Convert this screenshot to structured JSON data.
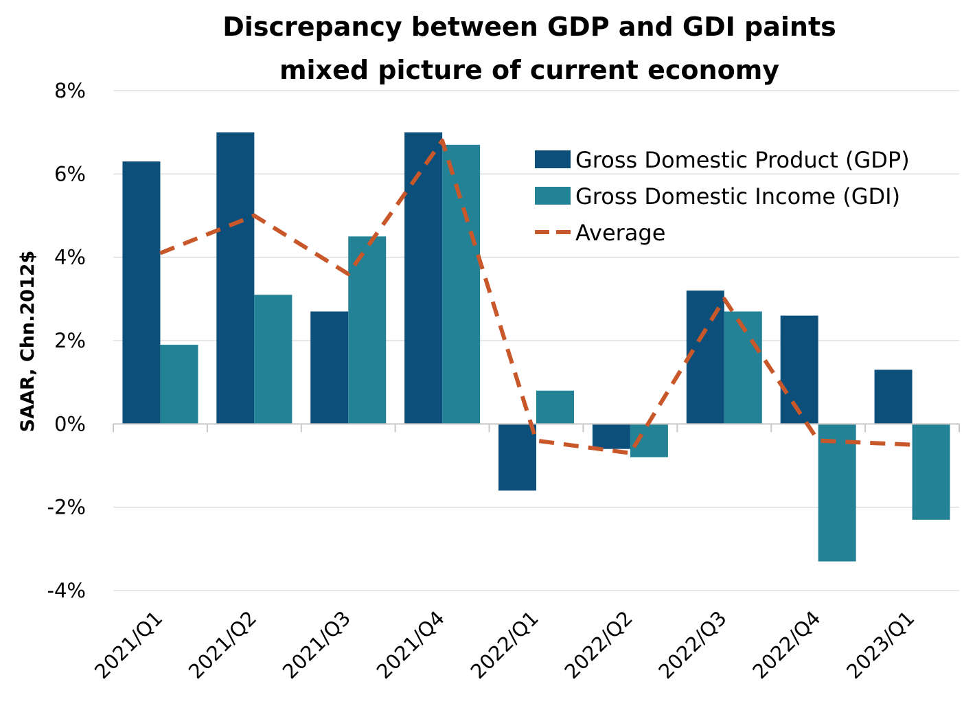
{
  "chart_data": {
    "type": "bar",
    "title": [
      "Discrepancy between GDP and GDI paints",
      "mixed picture of current economy"
    ],
    "ylabel": "SAAR, Chn.2012$",
    "xlabel": "",
    "ylim": [
      -4,
      8
    ],
    "yticks": [
      -4,
      -2,
      0,
      2,
      4,
      6,
      8
    ],
    "ytick_labels": [
      "-4%",
      "-2%",
      "0%",
      "2%",
      "4%",
      "6%",
      "8%"
    ],
    "categories": [
      "2021/Q1",
      "2021/Q2",
      "2021/Q3",
      "2021/Q4",
      "2022/Q1",
      "2022/Q2",
      "2022/Q3",
      "2022/Q4",
      "2023/Q1"
    ],
    "series": [
      {
        "name": "Gross Domestic Product (GDP)",
        "type": "bar",
        "color": "#0b4f7a",
        "values": [
          6.3,
          7.0,
          2.7,
          7.0,
          -1.6,
          -0.6,
          3.2,
          2.6,
          1.3
        ]
      },
      {
        "name": "Gross Domestic Income (GDI)",
        "type": "bar",
        "color": "#238295",
        "values": [
          1.9,
          3.1,
          4.5,
          6.7,
          0.8,
          -0.8,
          2.7,
          -3.3,
          -2.3
        ]
      },
      {
        "name": "Average",
        "type": "line",
        "style": "dashed",
        "color": "#c8572a",
        "values": [
          4.1,
          5.0,
          3.6,
          6.8,
          -0.4,
          -0.7,
          3.0,
          -0.4,
          -0.5
        ]
      }
    ],
    "grid": "horizontal",
    "legend": "top-right"
  }
}
